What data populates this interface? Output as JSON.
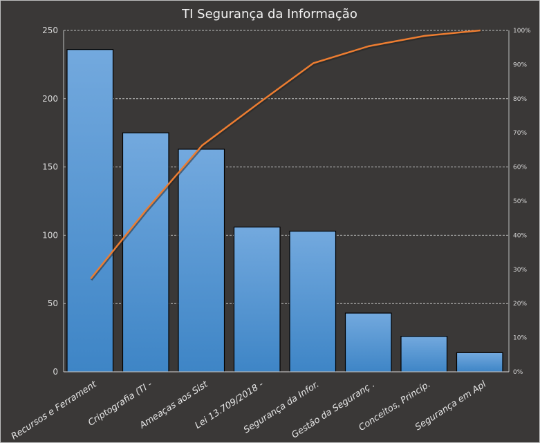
{
  "chart_data": {
    "type": "bar",
    "title": "TI Segurança da Informação",
    "categories": [
      "Recursos e Ferrament",
      "Criptografia (TI -",
      "Ameaças aos Sist",
      "Lei 13.709/2018 -",
      "Segurança da Infor.",
      "Gestão da Seguranç .",
      "Conceitos, Princíp.",
      "Segurança em Apl"
    ],
    "series": [
      {
        "type": "bar",
        "values": [
          236,
          175,
          163,
          106,
          103,
          43,
          26,
          14
        ]
      },
      {
        "type": "line",
        "axis": "right",
        "values_percent": [
          27.3,
          47.5,
          66.3,
          78.5,
          90.4,
          95.4,
          98.4,
          100
        ]
      }
    ],
    "ylim": [
      0,
      250
    ],
    "yticks": [
      "0",
      "50",
      "100",
      "150",
      "200",
      "250"
    ],
    "y2lim": [
      0,
      100
    ],
    "y2ticks": [
      "0%",
      "10%",
      "20%",
      "30%",
      "40%",
      "50%",
      "60%",
      "70%",
      "80%",
      "90%",
      "100%"
    ],
    "grid": true,
    "colors": {
      "bar_top": "#73a9de",
      "bar_bottom": "#3e85c6",
      "line": "#ed7d31",
      "background": "#3a3837"
    }
  }
}
